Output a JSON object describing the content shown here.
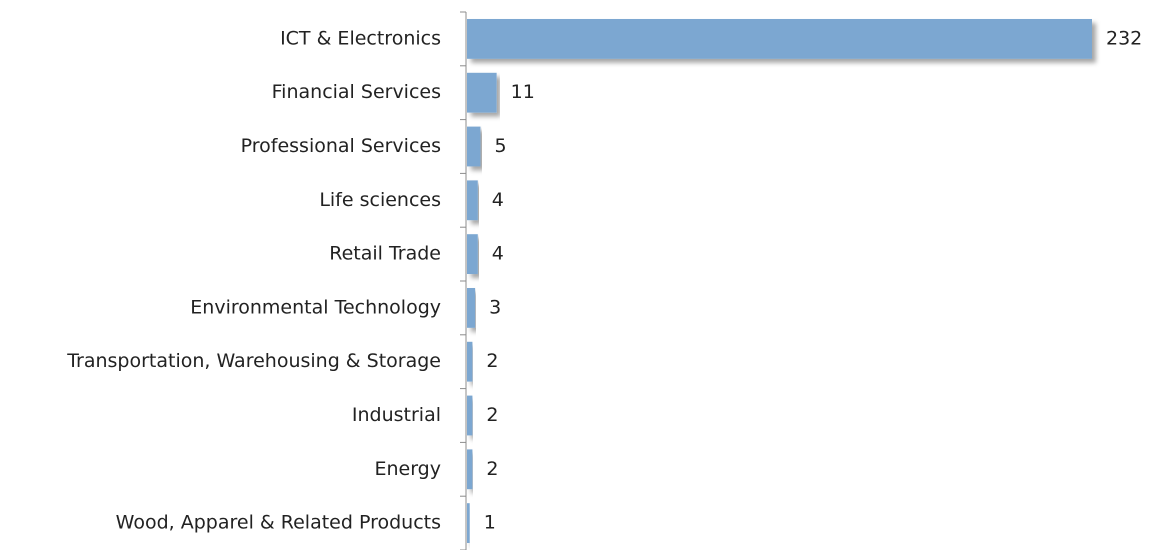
{
  "chart_data": {
    "type": "bar",
    "orientation": "horizontal",
    "categories": [
      "ICT & Electronics",
      "Financial Services",
      "Professional Services",
      "Life sciences",
      "Retail Trade",
      "Environmental Technology",
      "Transportation, Warehousing & Storage",
      "Industrial",
      "Energy",
      "Wood, Apparel & Related Products"
    ],
    "values": [
      232,
      11,
      5,
      4,
      4,
      3,
      2,
      2,
      2,
      1
    ],
    "color": "#7ba7d1"
  }
}
